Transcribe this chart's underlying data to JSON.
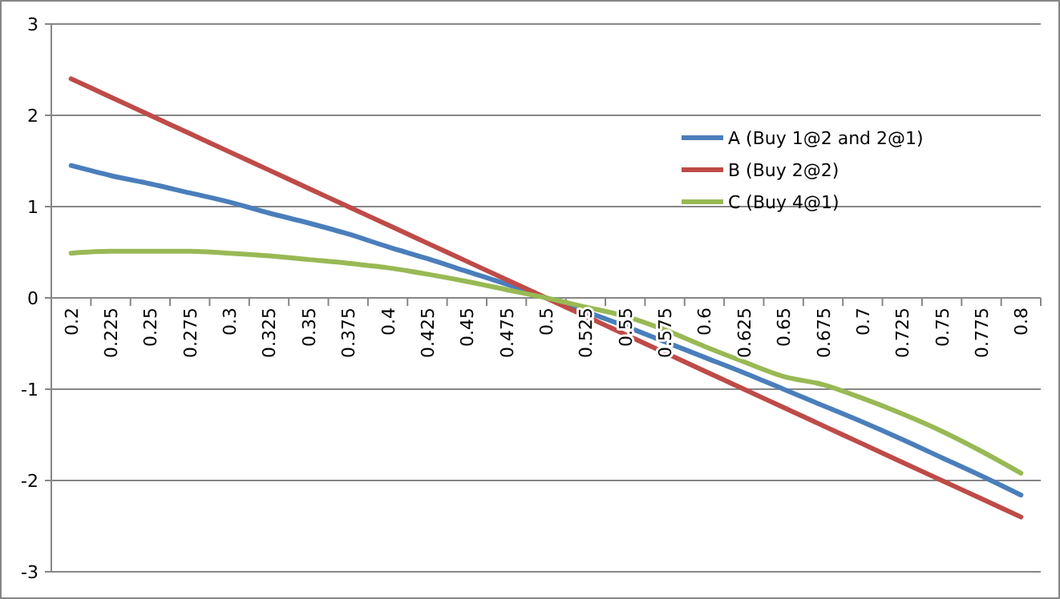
{
  "chart_data": {
    "type": "line",
    "categories": [
      "0.2",
      "0.225",
      "0.25",
      "0.275",
      "0.3",
      "0.325",
      "0.35",
      "0.375",
      "0.4",
      "0.425",
      "0.45",
      "0.475",
      "0.5",
      "0.525",
      "0.55",
      "0.575",
      "0.6",
      "0.625",
      "0.65",
      "0.675",
      "0.7",
      "0.725",
      "0.75",
      "0.775",
      "0.8"
    ],
    "series": [
      {
        "name": "A (Buy 1@2 and 2@1)",
        "color": "#4a7ebb",
        "values": [
          1.45,
          1.34,
          1.25,
          1.15,
          1.05,
          0.93,
          0.82,
          0.7,
          0.56,
          0.43,
          0.29,
          0.15,
          0,
          -0.15,
          -0.31,
          -0.48,
          -0.65,
          -0.82,
          -1.0,
          -1.18,
          -1.36,
          -1.55,
          -1.75,
          -1.95,
          -2.16
        ]
      },
      {
        "name": "B (Buy 2@2)",
        "color": "#be4b48",
        "values": [
          2.4,
          2.2,
          2.0,
          1.8,
          1.6,
          1.4,
          1.2,
          1.0,
          0.8,
          0.6,
          0.4,
          0.2,
          0,
          -0.2,
          -0.4,
          -0.6,
          -0.8,
          -1.0,
          -1.2,
          -1.4,
          -1.6,
          -1.8,
          -2.0,
          -2.2,
          -2.4
        ]
      },
      {
        "name": "C (Buy 4@1)",
        "color": "#98b954",
        "values": [
          0.49,
          0.51,
          0.51,
          0.51,
          0.49,
          0.46,
          0.42,
          0.38,
          0.33,
          0.26,
          0.18,
          0.09,
          0,
          -0.1,
          -0.2,
          -0.35,
          -0.53,
          -0.7,
          -0.86,
          -0.95,
          -1.1,
          -1.27,
          -1.46,
          -1.68,
          -1.92
        ]
      }
    ],
    "ylim": [
      -3,
      3
    ],
    "yticks": [
      -3,
      -2,
      -1,
      0,
      1,
      2,
      3
    ],
    "grid": "y",
    "legend": "right",
    "marker": "none",
    "line_style": "solid"
  }
}
